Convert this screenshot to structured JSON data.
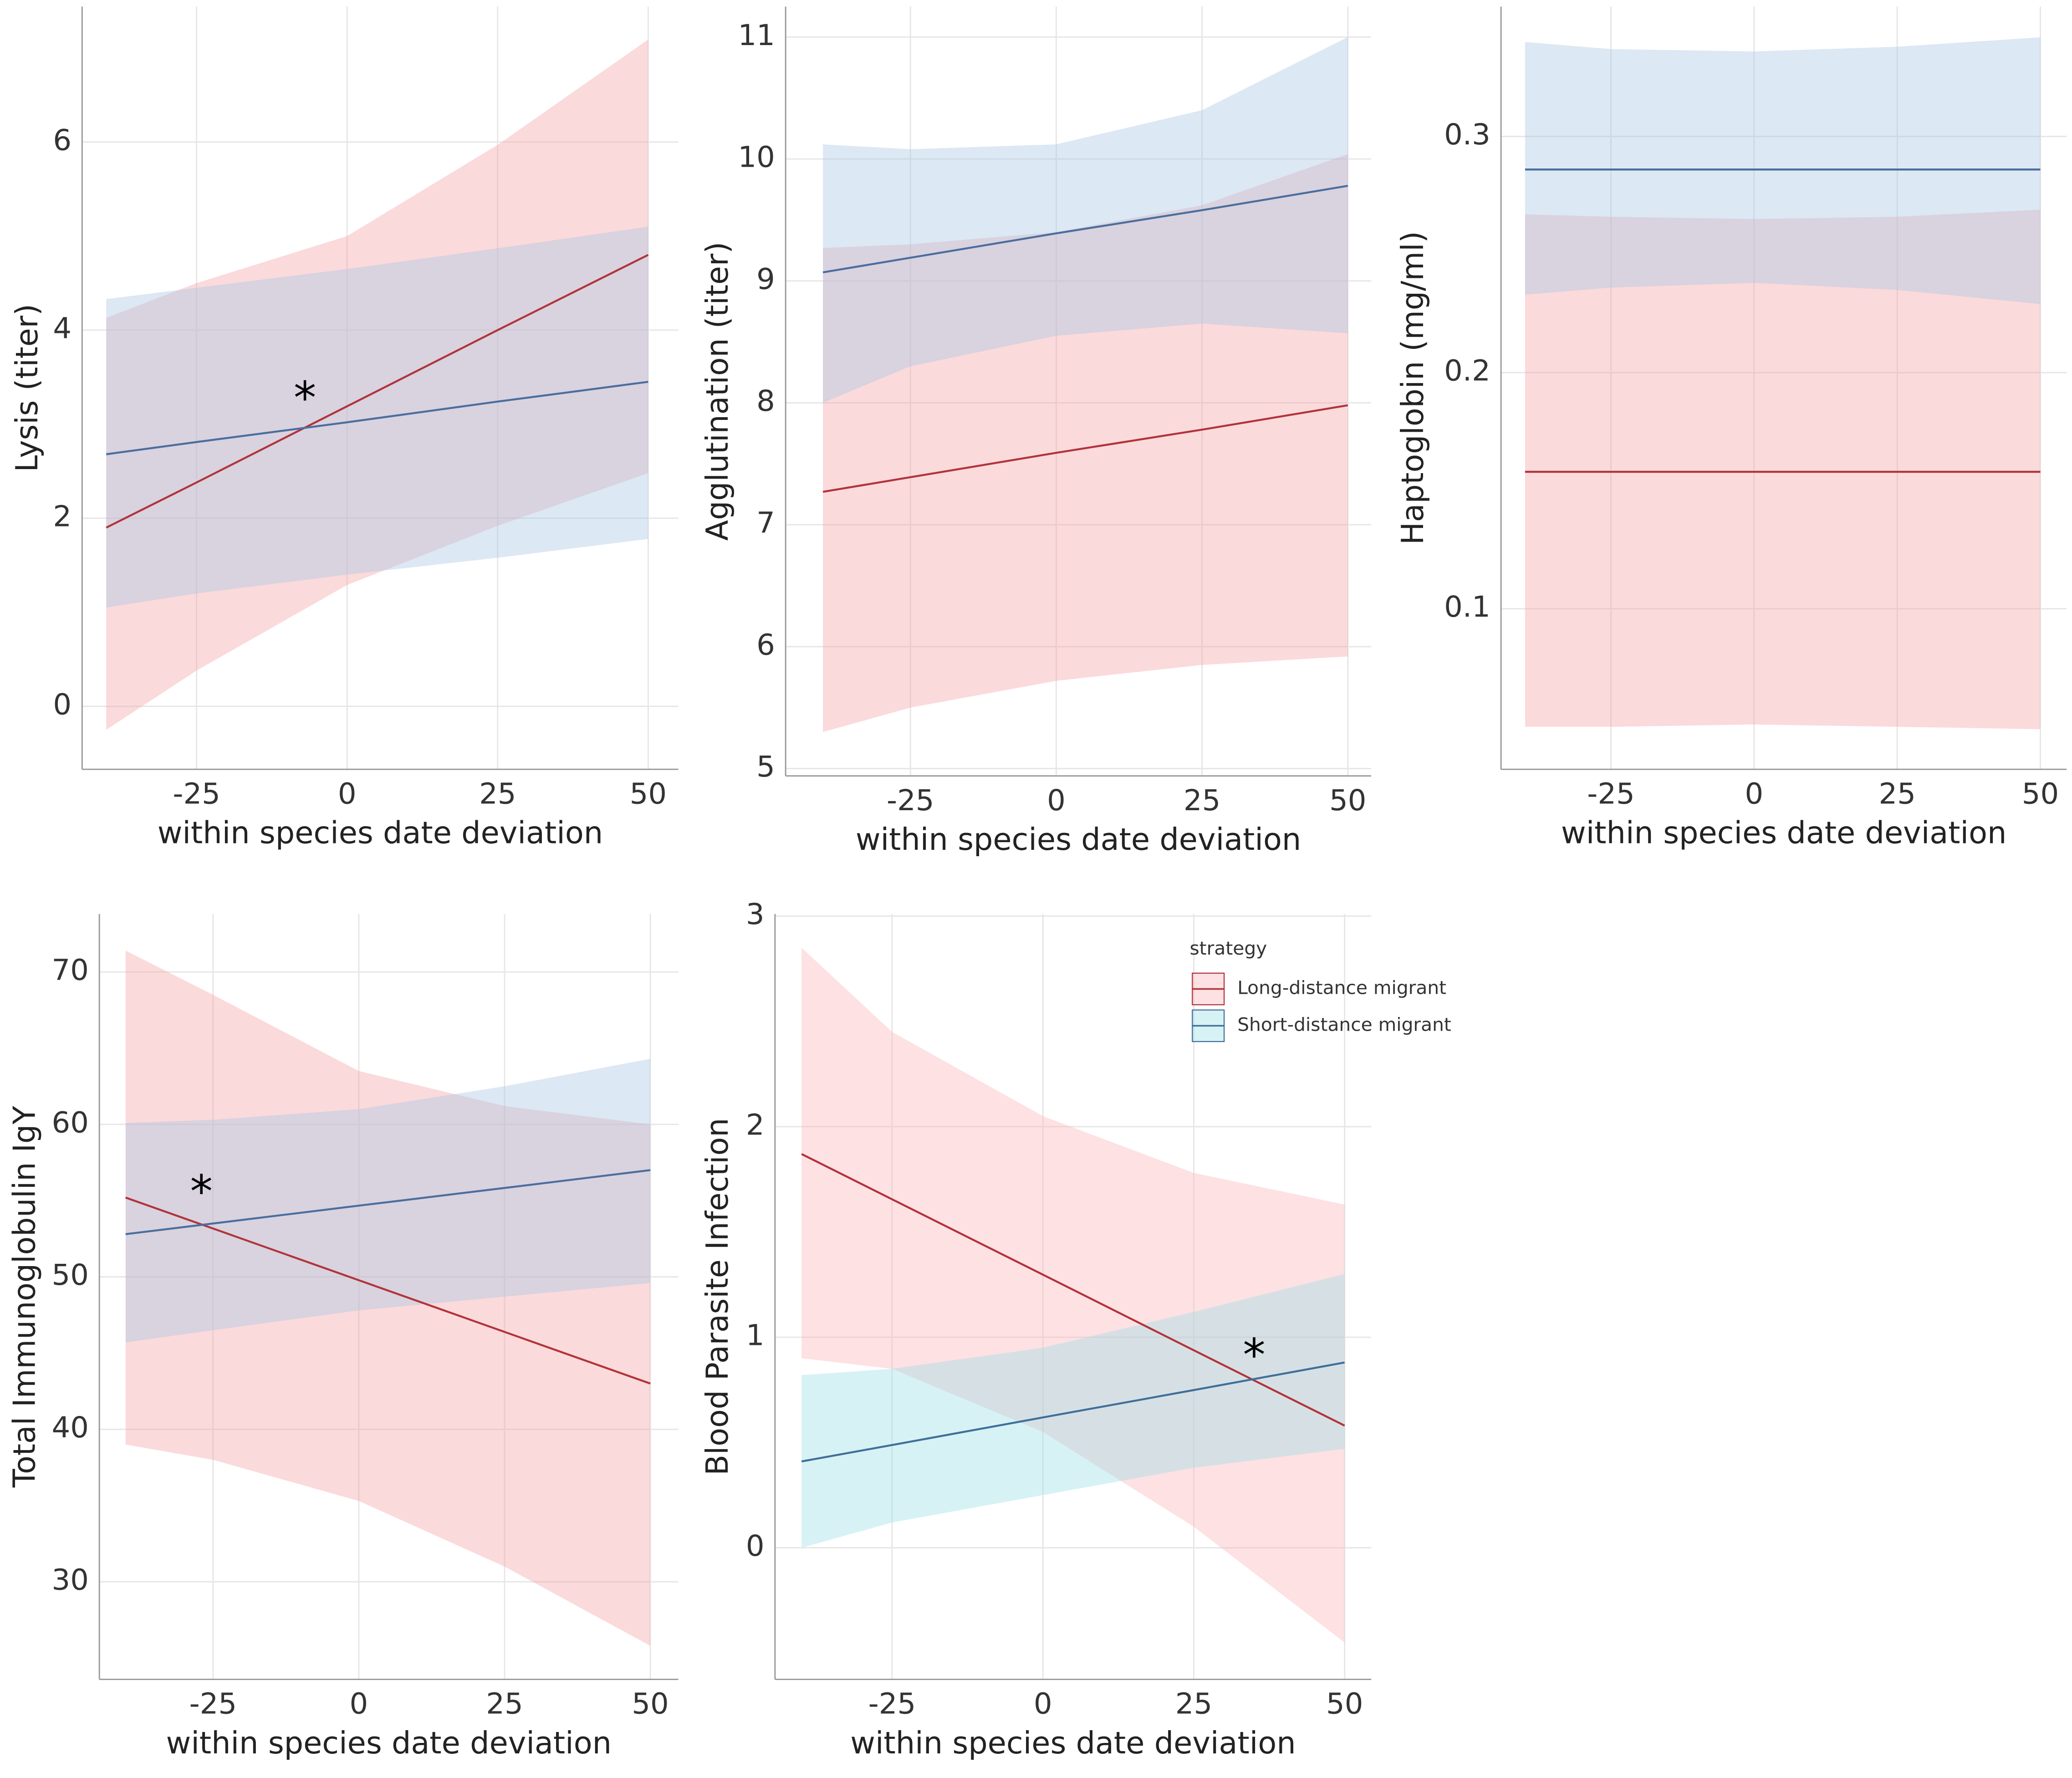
{
  "chart_data": [
    {
      "type": "line",
      "xlabel": "within species date deviation",
      "ylabel": "Lysis (titer)",
      "x": [
        -40,
        -25,
        0,
        25,
        50
      ],
      "xlim": [
        -44,
        55
      ],
      "xticks": [
        -25,
        0,
        25,
        50
      ],
      "ylim": [
        -0.67,
        7.44
      ],
      "yticks": [
        0,
        2,
        4,
        6
      ],
      "series": [
        {
          "color": "#b2333a",
          "band_color": "#f4a3a8",
          "values": [
            1.9,
            2.38,
            3.19,
            4.0,
            4.8
          ],
          "lower": [
            -0.25,
            0.38,
            1.29,
            1.92,
            2.48
          ],
          "upper": [
            4.13,
            4.5,
            5.0,
            5.97,
            7.09
          ]
        },
        {
          "color": "#4a6e9e",
          "band_color": "#a8c5e3",
          "values": [
            2.68,
            2.81,
            3.02,
            3.24,
            3.45
          ],
          "lower": [
            1.05,
            1.2,
            1.4,
            1.58,
            1.78
          ],
          "upper": [
            4.33,
            4.45,
            4.65,
            4.87,
            5.1
          ]
        }
      ],
      "annotations": [
        {
          "text": "*",
          "x": -7,
          "y": 3.31
        }
      ]
    },
    {
      "type": "line",
      "xlabel": "within species date deviation",
      "ylabel": "Agglutination (titer)",
      "x": [
        -40,
        -25,
        0,
        25,
        50
      ],
      "xlim": [
        -46.4,
        54
      ],
      "xticks": [
        -25,
        0,
        25,
        50
      ],
      "ylim": [
        4.94,
        11.25
      ],
      "yticks": [
        5,
        6,
        7,
        8,
        9,
        10,
        11
      ],
      "series": [
        {
          "color": "#b2333a",
          "band_color": "#f4a3a8",
          "values": [
            7.27,
            7.39,
            7.59,
            7.78,
            7.98
          ],
          "lower": [
            5.3,
            5.5,
            5.72,
            5.85,
            5.92
          ],
          "upper": [
            9.27,
            9.3,
            9.4,
            9.62,
            10.04
          ]
        },
        {
          "color": "#4a6e9e",
          "band_color": "#a8c5e3",
          "values": [
            9.07,
            9.19,
            9.39,
            9.58,
            9.78
          ],
          "lower": [
            8.0,
            8.3,
            8.55,
            8.65,
            8.57
          ],
          "upper": [
            10.12,
            10.08,
            10.12,
            10.4,
            11.0
          ]
        }
      ],
      "annotations": []
    },
    {
      "type": "line",
      "xlabel": "within species date deviation",
      "ylabel": "Haptoglobin (mg/ml)",
      "x": [
        -40,
        -25,
        0,
        25,
        50
      ],
      "xlim": [
        -44.2,
        54.6
      ],
      "xticks": [
        -25,
        0,
        25,
        50
      ],
      "ylim": [
        0.032,
        0.355
      ],
      "yticks": [
        0.1,
        0.2,
        0.3
      ],
      "series": [
        {
          "color": "#b2333a",
          "band_color": "#f4a3a8",
          "values": [
            0.158,
            0.158,
            0.158,
            0.158,
            0.158
          ],
          "lower": [
            0.05,
            0.05,
            0.051,
            0.05,
            0.049
          ],
          "upper": [
            0.267,
            0.266,
            0.265,
            0.266,
            0.269
          ]
        },
        {
          "color": "#4a6e9e",
          "band_color": "#a8c5e3",
          "values": [
            0.286,
            0.286,
            0.286,
            0.286,
            0.286
          ],
          "lower": [
            0.233,
            0.236,
            0.238,
            0.235,
            0.229
          ],
          "upper": [
            0.34,
            0.337,
            0.336,
            0.338,
            0.342
          ]
        }
      ],
      "annotations": []
    },
    {
      "type": "line",
      "xlabel": "within species date deviation",
      "ylabel": "Total Immunoglobulin IgY",
      "x": [
        -40,
        -25,
        0,
        25,
        50
      ],
      "xlim": [
        -44.5,
        54.8
      ],
      "xticks": [
        -25,
        0,
        25,
        50
      ],
      "ylim": [
        23.6,
        73.8
      ],
      "yticks": [
        30,
        40,
        50,
        60,
        70
      ],
      "series": [
        {
          "color": "#b2333a",
          "band_color": "#f4a3a8",
          "values": [
            55.2,
            53.17,
            49.78,
            46.39,
            43.0
          ],
          "lower": [
            39.0,
            38.0,
            35.3,
            31.0,
            25.8
          ],
          "upper": [
            71.4,
            68.5,
            63.5,
            61.2,
            60.0
          ]
        },
        {
          "color": "#4a6e9e",
          "band_color": "#a8c5e3",
          "values": [
            52.8,
            53.5,
            54.67,
            55.83,
            57.0
          ],
          "lower": [
            45.7,
            46.5,
            47.8,
            48.7,
            49.6
          ],
          "upper": [
            60.1,
            60.3,
            61.0,
            62.5,
            64.3
          ]
        }
      ],
      "annotations": [
        {
          "text": "*",
          "x": -27,
          "y": 55.8
        }
      ]
    },
    {
      "type": "line",
      "xlabel": "within species date deviation",
      "ylabel": "Blood Parasite Infection",
      "x": [
        -40,
        -25,
        0,
        25,
        50
      ],
      "xlim": [
        -44.4,
        54.4
      ],
      "xticks": [
        -25,
        0,
        25,
        50
      ],
      "ylim": [
        -0.625,
        3.01
      ],
      "yticks": [
        0,
        1,
        2,
        3
      ],
      "series": [
        {
          "name": "Long-distance migrant",
          "color": "#b2333a",
          "band_color": "#f9b3b8",
          "values": [
            1.87,
            1.655,
            1.297,
            0.938,
            0.58
          ],
          "lower": [
            0.9,
            0.85,
            0.55,
            0.1,
            -0.45
          ],
          "upper": [
            2.85,
            2.45,
            2.05,
            1.78,
            1.63
          ]
        },
        {
          "name": "Short-distance migrant",
          "color": "#3f6f9a",
          "band_color": "#9adfe6",
          "values": [
            0.41,
            0.488,
            0.619,
            0.749,
            0.88
          ],
          "lower": [
            0.0,
            0.12,
            0.25,
            0.38,
            0.47
          ],
          "upper": [
            0.82,
            0.85,
            0.95,
            1.12,
            1.3
          ]
        }
      ],
      "annotations": [
        {
          "text": "*",
          "x": 35,
          "y": 0.93
        }
      ],
      "legend": {
        "title": "strategy",
        "position": "top-right"
      }
    }
  ]
}
